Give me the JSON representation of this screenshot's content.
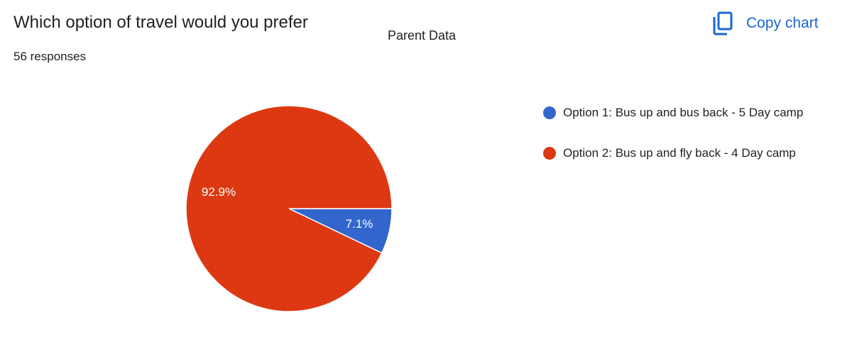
{
  "question": "Which option of travel would you prefer",
  "responses": "56 responses",
  "copy_button": "Copy chart",
  "chart_data": {
    "type": "pie",
    "title": "Parent Data",
    "categories": [
      "Option 1: Bus up and bus back - 5 Day camp",
      "Option 2: Bus up and fly back - 4 Day camp"
    ],
    "values": [
      7.1,
      92.9
    ],
    "value_labels": [
      "7.1%",
      "92.9%"
    ],
    "colors": [
      "#3366cc",
      "#dc3912"
    ],
    "legend": "right"
  }
}
